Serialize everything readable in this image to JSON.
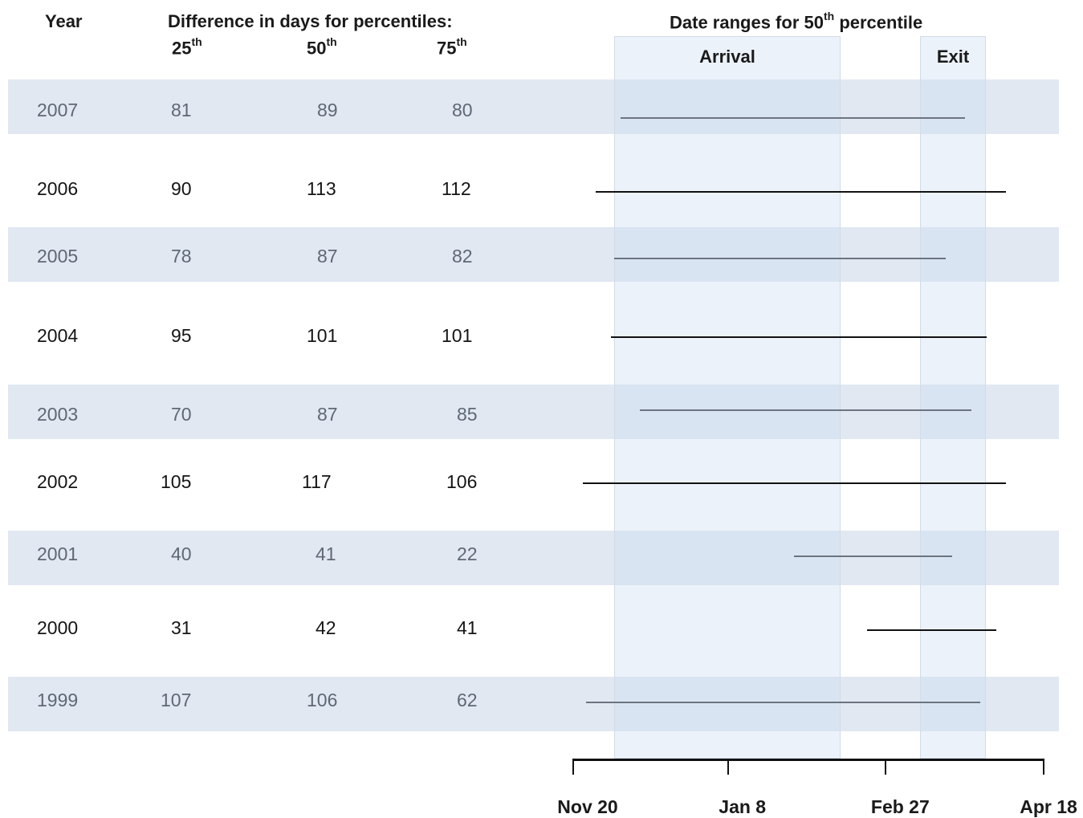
{
  "headers": {
    "year": "Year",
    "difference": "Difference in days for percentiles:",
    "p25": "25",
    "p50": "50",
    "p75": "75",
    "suffix": "th",
    "ranges_prefix": "Date ranges for 50",
    "ranges_suffix": "percentile"
  },
  "periods": {
    "arrival": "Arrival",
    "exit": "Exit"
  },
  "colors": {
    "band": "#e1e8f2",
    "period": "#dce6f5",
    "line_light": "#6b7480",
    "line_dark": "#111111"
  },
  "chart_data": {
    "type": "table",
    "columns": [
      "Year",
      "25th",
      "50th",
      "75th"
    ],
    "rows": [
      {
        "year": "2007",
        "p25": "81",
        "p50": "89",
        "p75": "80"
      },
      {
        "year": "2006",
        "p25": "90",
        "p50": "113",
        "p75": "112"
      },
      {
        "year": "2005",
        "p25": "78",
        "p50": "87",
        "p75": "82"
      },
      {
        "year": "2004",
        "p25": "95",
        "p50": "101",
        "p75": "101"
      },
      {
        "year": "2003",
        "p25": "70",
        "p50": "87",
        "p75": "85"
      },
      {
        "year": "2002",
        "p25": "105",
        "p50": "117",
        "p75": "106"
      },
      {
        "year": "2001",
        "p25": "40",
        "p50": "41",
        "p75": "22"
      },
      {
        "year": "2000",
        "p25": "31",
        "p50": "42",
        "p75": "41"
      },
      {
        "year": "1999",
        "p25": "107",
        "p50": "106",
        "p75": "62"
      }
    ],
    "ranges_50th": [
      {
        "year": "2007",
        "start": "Dec 5",
        "end": "Mar 24"
      },
      {
        "year": "2006",
        "start": "Nov 27",
        "end": "Apr 6"
      },
      {
        "year": "2005",
        "start": "Dec 3",
        "end": "Mar 18"
      },
      {
        "year": "2004",
        "start": "Dec 2",
        "end": "Mar 31"
      },
      {
        "year": "2003",
        "start": "Dec 11",
        "end": "Mar 26"
      },
      {
        "year": "2002",
        "start": "Nov 23",
        "end": "Apr 6"
      },
      {
        "year": "2001",
        "start": "Jan 29",
        "end": "Mar 20"
      },
      {
        "year": "2000",
        "start": "Feb 21",
        "end": "Apr 3"
      },
      {
        "year": "1999",
        "start": "Nov 24",
        "end": "Mar 29"
      }
    ],
    "periods": [
      {
        "label": "Arrival",
        "start": "Nov 23",
        "end": "Feb 21"
      },
      {
        "label": "Exit",
        "start": "Mar 18",
        "end": "Apr 7"
      }
    ],
    "x_ticks": [
      "Nov 20",
      "Jan 8",
      "Feb 27",
      "Apr 18"
    ],
    "x_range": [
      "Nov 20",
      "Apr 18"
    ]
  }
}
